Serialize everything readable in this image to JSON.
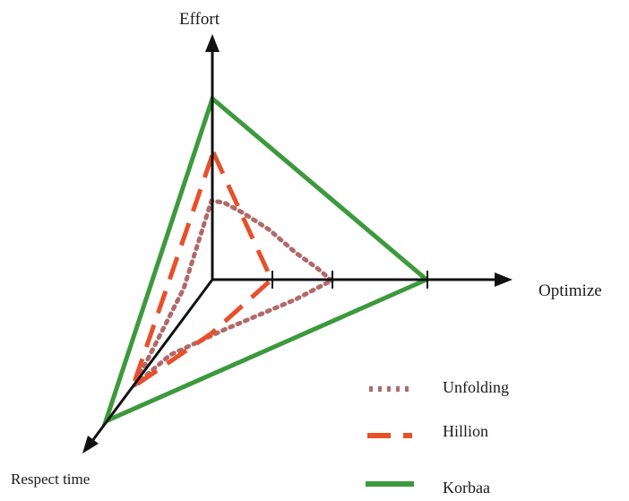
{
  "axes": {
    "vertical": "Effort",
    "horizontal": "Optimize",
    "diagonal": "Respect time"
  },
  "legend": [
    {
      "key": "unfolding",
      "label": "Unfolding",
      "style": "dotted",
      "color": "#b06a6a"
    },
    {
      "key": "hillion",
      "label": "Hillion",
      "style": "dashed",
      "color": "#e8502a"
    },
    {
      "key": "korbaa",
      "label": "Korbaa",
      "style": "solid",
      "color": "#3c9a3c"
    }
  ],
  "colors": {
    "axis": "#111111",
    "unfolding": "#b06a6a",
    "hillion": "#e8502a",
    "korbaa": "#3c9a3c"
  }
}
